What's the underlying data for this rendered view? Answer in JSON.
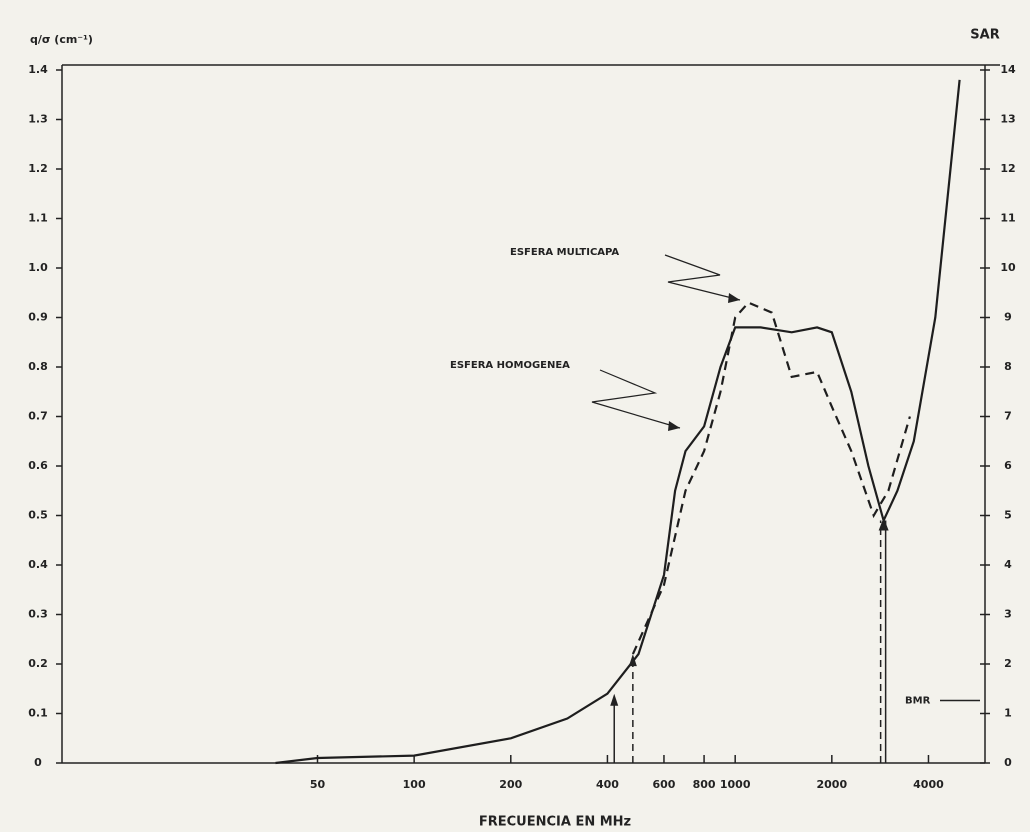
{
  "chart_data": {
    "type": "line",
    "y_label": "q/σ (cm⁻¹)",
    "y2_label": "SAR",
    "x_label": "FRECUENCIA EN MHz",
    "x_scale": "log",
    "xlim": [
      8,
      6000
    ],
    "xticks": [
      50,
      100,
      200,
      400,
      600,
      800,
      1000,
      2000,
      4000
    ],
    "ylim": [
      0,
      1.4
    ],
    "yticks": [
      0,
      0.1,
      0.2,
      0.3,
      0.4,
      0.5,
      0.6,
      0.7,
      0.8,
      0.9,
      {
        "value": 1,
        "label": "1.0"
      },
      1.1,
      1.2,
      1.3,
      1.4
    ],
    "y2lim": [
      0,
      14
    ],
    "y2ticks": [
      0,
      1,
      2,
      3,
      4,
      5,
      6,
      7,
      8,
      9,
      10,
      11,
      12,
      13,
      14
    ],
    "grid": false,
    "series": [
      {
        "name": "ESFERA HOMOGENEA",
        "color": "#1e1e1e",
        "dashed": false,
        "x": [
          37,
          50,
          100,
          200,
          300,
          400,
          500,
          600,
          650,
          700,
          800,
          900,
          1000,
          1200,
          1500,
          1800,
          2000,
          2300,
          2600,
          2900,
          3200,
          3600,
          4200,
          5000
        ],
        "values": [
          0.0,
          0.01,
          0.015,
          0.05,
          0.09,
          0.14,
          0.22,
          0.38,
          0.55,
          0.63,
          0.68,
          0.8,
          0.88,
          0.88,
          0.87,
          0.88,
          0.87,
          0.75,
          0.6,
          0.49,
          0.55,
          0.65,
          0.9,
          1.38
        ]
      },
      {
        "name": "ESFERA MULTICAPA",
        "color": "#1e1e1e",
        "dashed": true,
        "x": [
          480,
          600,
          700,
          800,
          900,
          1000,
          1100,
          1300,
          1500,
          1800,
          2000,
          2300,
          2700,
          3000,
          3500
        ],
        "values": [
          0.22,
          0.36,
          0.55,
          0.63,
          0.75,
          0.9,
          0.93,
          0.91,
          0.78,
          0.79,
          0.72,
          0.63,
          0.5,
          0.55,
          0.7
        ]
      }
    ],
    "annotations": [
      {
        "text": "BMR",
        "y2": 1.1
      }
    ]
  }
}
